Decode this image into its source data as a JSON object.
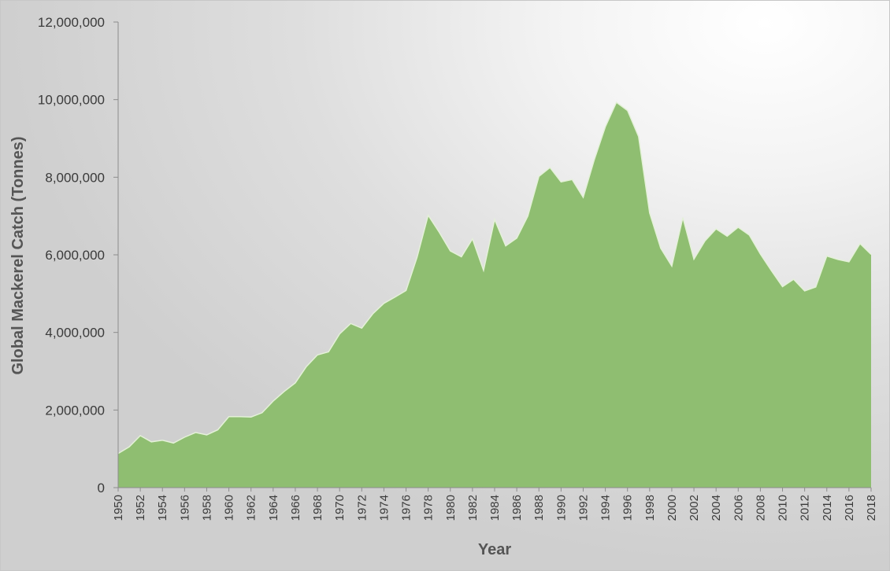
{
  "chart_data": {
    "type": "area",
    "title": "",
    "xlabel": "Year",
    "ylabel": "Global Mackerel Catch (Tonnes)",
    "xlim": [
      1950,
      2018
    ],
    "ylim": [
      0,
      12000000
    ],
    "y_ticks": [
      0,
      2000000,
      4000000,
      6000000,
      8000000,
      10000000,
      12000000
    ],
    "y_tick_labels": [
      "0",
      "2,000,000",
      "4,000,000",
      "6,000,000",
      "8,000,000",
      "10,000,000",
      "12,000,000"
    ],
    "x_ticks": [
      1950,
      1952,
      1954,
      1956,
      1958,
      1960,
      1962,
      1964,
      1966,
      1968,
      1970,
      1972,
      1974,
      1976,
      1978,
      1980,
      1982,
      1984,
      1986,
      1988,
      1990,
      1992,
      1994,
      1996,
      1998,
      2000,
      2002,
      2004,
      2006,
      2008,
      2010,
      2012,
      2014,
      2016,
      2018
    ],
    "grid": false,
    "legend": "none",
    "fill_color": "#8fbe71",
    "line_color": "#e4f1d8",
    "series": [
      {
        "x": [
          1950,
          1951,
          1952,
          1953,
          1954,
          1955,
          1956,
          1957,
          1958,
          1959,
          1960,
          1961,
          1962,
          1963,
          1964,
          1965,
          1966,
          1967,
          1968,
          1969,
          1970,
          1971,
          1972,
          1973,
          1974,
          1975,
          1976,
          1977,
          1978,
          1979,
          1980,
          1981,
          1982,
          1983,
          1984,
          1985,
          1986,
          1987,
          1988,
          1989,
          1990,
          1991,
          1992,
          1993,
          1994,
          1995,
          1996,
          1997,
          1998,
          1999,
          2000,
          2001,
          2002,
          2003,
          2004,
          2005,
          2006,
          2007,
          2008,
          2009,
          2010,
          2011,
          2012,
          2013,
          2014,
          2015,
          2016,
          2017,
          2018
        ],
        "values": [
          880000,
          1050000,
          1340000,
          1180000,
          1220000,
          1150000,
          1300000,
          1420000,
          1360000,
          1490000,
          1830000,
          1830000,
          1820000,
          1930000,
          2230000,
          2480000,
          2700000,
          3120000,
          3420000,
          3500000,
          3960000,
          4230000,
          4110000,
          4480000,
          4750000,
          4910000,
          5080000,
          5940000,
          7020000,
          6580000,
          6100000,
          5950000,
          6410000,
          5600000,
          6910000,
          6230000,
          6430000,
          7000000,
          8020000,
          8250000,
          7880000,
          7940000,
          7480000,
          8450000,
          9300000,
          9930000,
          9720000,
          9050000,
          7080000,
          6170000,
          5710000,
          6960000,
          5890000,
          6360000,
          6670000,
          6480000,
          6710000,
          6510000,
          6020000,
          5590000,
          5180000,
          5370000,
          5070000,
          5170000,
          5970000,
          5880000,
          5820000,
          6290000,
          6010000
        ]
      }
    ]
  }
}
